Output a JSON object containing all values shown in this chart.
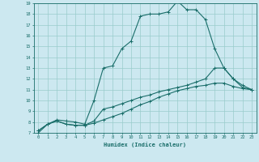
{
  "xlabel": "Humidex (Indice chaleur)",
  "bg_color": "#cce8f0",
  "line_color": "#1a6e6a",
  "grid_color": "#99cccc",
  "xlim": [
    -0.5,
    23.5
  ],
  "ylim": [
    7,
    19
  ],
  "line1_x": [
    0,
    1,
    2,
    3,
    4,
    5,
    6,
    7,
    8,
    9,
    10,
    11,
    12,
    13,
    14,
    15,
    16,
    17,
    18,
    19,
    20,
    21,
    22,
    23
  ],
  "line1_y": [
    7.0,
    7.8,
    8.2,
    8.1,
    8.0,
    7.8,
    10.0,
    13.0,
    13.2,
    14.8,
    15.5,
    17.8,
    18.0,
    18.0,
    18.2,
    19.2,
    18.4,
    18.4,
    17.5,
    14.8,
    13.0,
    12.0,
    11.2,
    11.0
  ],
  "line2_x": [
    0,
    1,
    2,
    3,
    4,
    5,
    6,
    7,
    8,
    9,
    10,
    11,
    12,
    13,
    14,
    15,
    16,
    17,
    18,
    19,
    20,
    21,
    22,
    23
  ],
  "line2_y": [
    7.2,
    7.8,
    8.1,
    7.8,
    7.7,
    7.7,
    7.9,
    8.2,
    8.5,
    8.8,
    9.2,
    9.6,
    9.9,
    10.3,
    10.6,
    10.9,
    11.1,
    11.3,
    11.4,
    11.6,
    11.6,
    11.3,
    11.1,
    11.0
  ],
  "line3_x": [
    0,
    1,
    2,
    3,
    4,
    5,
    6,
    7,
    8,
    9,
    10,
    11,
    12,
    13,
    14,
    15,
    16,
    17,
    18,
    19,
    20,
    21,
    22,
    23
  ],
  "line3_y": [
    7.2,
    7.8,
    8.1,
    7.8,
    7.7,
    7.7,
    8.1,
    9.2,
    9.4,
    9.7,
    10.0,
    10.3,
    10.5,
    10.8,
    11.0,
    11.2,
    11.4,
    11.7,
    12.0,
    13.0,
    13.0,
    12.0,
    11.4,
    11.0
  ],
  "xticks": [
    0,
    1,
    2,
    3,
    4,
    5,
    6,
    7,
    8,
    9,
    10,
    11,
    12,
    13,
    14,
    15,
    16,
    17,
    18,
    19,
    20,
    21,
    22,
    23
  ],
  "yticks": [
    7,
    8,
    9,
    10,
    11,
    12,
    13,
    14,
    15,
    16,
    17,
    18,
    19
  ]
}
